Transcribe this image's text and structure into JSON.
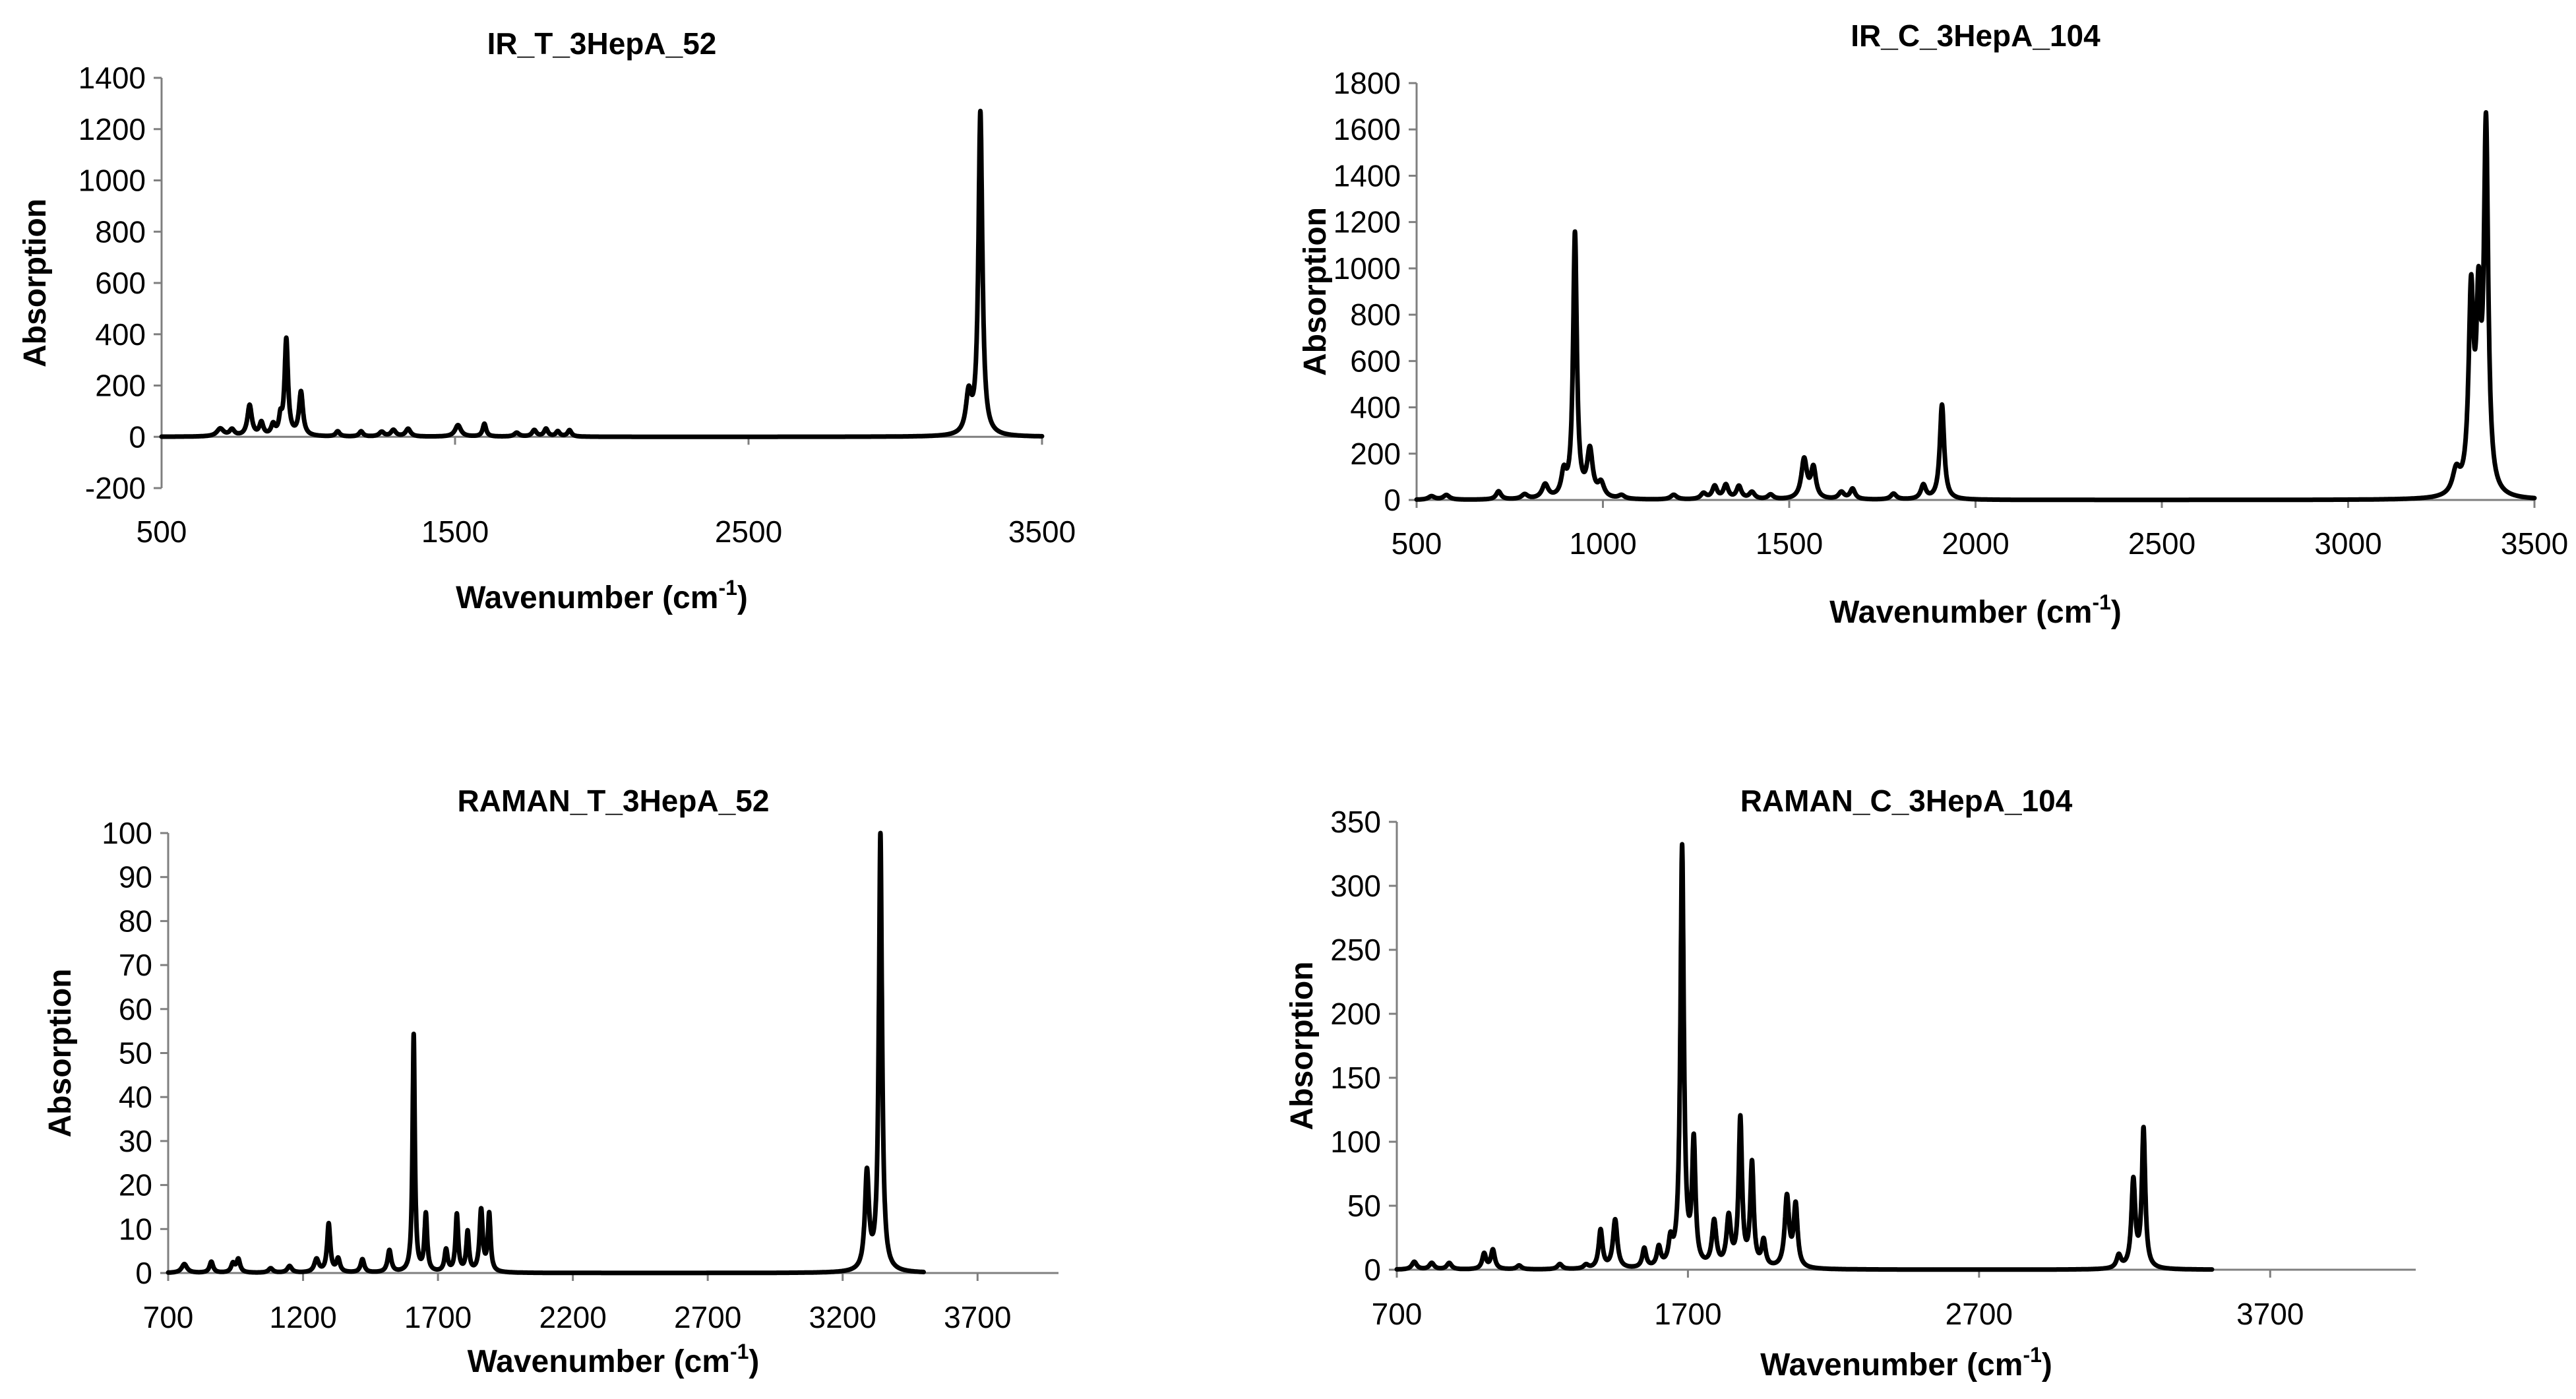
{
  "chart_data": [
    {
      "type": "line",
      "title": "IR_T_3HepA_52",
      "xlabel": "Wavenumber (cm",
      "xlabel_sup": "-1",
      "xlabel_end": ")",
      "ylabel": "Absorption",
      "xlim": [
        500,
        3500
      ],
      "ylim": [
        -200,
        1400
      ],
      "xticks": [
        500,
        1500,
        2500,
        3500
      ],
      "yticks": [
        -200,
        0,
        200,
        400,
        600,
        800,
        1000,
        1200,
        1400
      ],
      "grid": false,
      "legend": "none",
      "series": [
        {
          "name": "IR_T_3HepA_52",
          "x_range": [
            500,
            3500
          ],
          "baseline": 0,
          "peaks": [
            {
              "x": 700,
              "y": 30,
              "w": 14
            },
            {
              "x": 740,
              "y": 25,
              "w": 10
            },
            {
              "x": 800,
              "y": 120,
              "w": 9
            },
            {
              "x": 840,
              "y": 50,
              "w": 8
            },
            {
              "x": 880,
              "y": 40,
              "w": 8
            },
            {
              "x": 905,
              "y": 60,
              "w": 6
            },
            {
              "x": 925,
              "y": 375,
              "w": 7
            },
            {
              "x": 975,
              "y": 170,
              "w": 8
            },
            {
              "x": 1100,
              "y": 20,
              "w": 8
            },
            {
              "x": 1180,
              "y": 20,
              "w": 8
            },
            {
              "x": 1250,
              "y": 18,
              "w": 10
            },
            {
              "x": 1290,
              "y": 25,
              "w": 10
            },
            {
              "x": 1340,
              "y": 30,
              "w": 10
            },
            {
              "x": 1510,
              "y": 45,
              "w": 12
            },
            {
              "x": 1600,
              "y": 50,
              "w": 7
            },
            {
              "x": 1710,
              "y": 15,
              "w": 10
            },
            {
              "x": 1770,
              "y": 25,
              "w": 9
            },
            {
              "x": 1810,
              "y": 30,
              "w": 8
            },
            {
              "x": 1850,
              "y": 20,
              "w": 8
            },
            {
              "x": 1890,
              "y": 25,
              "w": 8
            },
            {
              "x": 3250,
              "y": 150,
              "w": 11
            },
            {
              "x": 3290,
              "y": 1260,
              "w": 8
            }
          ]
        }
      ]
    },
    {
      "type": "line",
      "title": "IR_C_3HepA_104",
      "xlabel": "Wavenumber (cm",
      "xlabel_sup": "-1",
      "xlabel_end": ")",
      "ylabel": "Absorption",
      "xlim": [
        500,
        3500
      ],
      "ylim": [
        0,
        1800
      ],
      "xticks": [
        500,
        1000,
        1500,
        2000,
        2500,
        3000,
        3500
      ],
      "yticks": [
        0,
        200,
        400,
        600,
        800,
        1000,
        1200,
        1400,
        1600,
        1800
      ],
      "grid": false,
      "legend": "none",
      "series": [
        {
          "name": "IR_C_3HepA_104",
          "x_range": [
            500,
            3500
          ],
          "baseline": 0,
          "peaks": [
            {
              "x": 540,
              "y": 15,
              "w": 10
            },
            {
              "x": 580,
              "y": 20,
              "w": 10
            },
            {
              "x": 720,
              "y": 35,
              "w": 8
            },
            {
              "x": 790,
              "y": 20,
              "w": 10
            },
            {
              "x": 845,
              "y": 60,
              "w": 10
            },
            {
              "x": 895,
              "y": 100,
              "w": 8
            },
            {
              "x": 925,
              "y": 1140,
              "w": 6
            },
            {
              "x": 965,
              "y": 200,
              "w": 9
            },
            {
              "x": 995,
              "y": 60,
              "w": 10
            },
            {
              "x": 1050,
              "y": 15,
              "w": 10
            },
            {
              "x": 1190,
              "y": 20,
              "w": 10
            },
            {
              "x": 1270,
              "y": 25,
              "w": 9
            },
            {
              "x": 1300,
              "y": 55,
              "w": 8
            },
            {
              "x": 1330,
              "y": 60,
              "w": 8
            },
            {
              "x": 1365,
              "y": 55,
              "w": 8
            },
            {
              "x": 1400,
              "y": 30,
              "w": 9
            },
            {
              "x": 1450,
              "y": 20,
              "w": 9
            },
            {
              "x": 1540,
              "y": 170,
              "w": 9
            },
            {
              "x": 1565,
              "y": 130,
              "w": 8
            },
            {
              "x": 1640,
              "y": 30,
              "w": 9
            },
            {
              "x": 1670,
              "y": 45,
              "w": 8
            },
            {
              "x": 1780,
              "y": 25,
              "w": 9
            },
            {
              "x": 1860,
              "y": 60,
              "w": 8
            },
            {
              "x": 1910,
              "y": 410,
              "w": 7
            },
            {
              "x": 3290,
              "y": 100,
              "w": 12
            },
            {
              "x": 3330,
              "y": 840,
              "w": 8
            },
            {
              "x": 3350,
              "y": 720,
              "w": 7
            },
            {
              "x": 3370,
              "y": 1560,
              "w": 7
            }
          ]
        }
      ]
    },
    {
      "type": "line",
      "title": "RAMAN_T_3HepA_52",
      "xlabel": "Wavenumber (cm",
      "xlabel_sup": "-1",
      "xlabel_end": ")",
      "ylabel": "Absorption",
      "xlim": [
        700,
        4000
      ],
      "ylim": [
        0,
        100
      ],
      "xticks": [
        700,
        1200,
        1700,
        2200,
        2700,
        3200,
        3700
      ],
      "yticks": [
        0,
        10,
        20,
        30,
        40,
        50,
        60,
        70,
        80,
        90,
        100
      ],
      "grid": false,
      "legend": "none",
      "series": [
        {
          "name": "RAMAN_T_3HepA_52",
          "x_range": [
            700,
            3500
          ],
          "baseline": 0,
          "peaks": [
            {
              "x": 760,
              "y": 2,
              "w": 12
            },
            {
              "x": 860,
              "y": 2.5,
              "w": 8
            },
            {
              "x": 940,
              "y": 2,
              "w": 8
            },
            {
              "x": 960,
              "y": 3,
              "w": 8
            },
            {
              "x": 1080,
              "y": 1,
              "w": 10
            },
            {
              "x": 1150,
              "y": 1.5,
              "w": 10
            },
            {
              "x": 1250,
              "y": 3,
              "w": 10
            },
            {
              "x": 1295,
              "y": 11,
              "w": 7
            },
            {
              "x": 1330,
              "y": 3,
              "w": 8
            },
            {
              "x": 1420,
              "y": 3,
              "w": 8
            },
            {
              "x": 1520,
              "y": 5,
              "w": 8
            },
            {
              "x": 1610,
              "y": 54,
              "w": 5
            },
            {
              "x": 1655,
              "y": 13,
              "w": 6
            },
            {
              "x": 1730,
              "y": 5,
              "w": 7
            },
            {
              "x": 1770,
              "y": 13,
              "w": 6
            },
            {
              "x": 1810,
              "y": 9,
              "w": 6
            },
            {
              "x": 1860,
              "y": 14,
              "w": 7
            },
            {
              "x": 1890,
              "y": 13,
              "w": 6
            },
            {
              "x": 3290,
              "y": 22,
              "w": 9
            },
            {
              "x": 3340,
              "y": 99.5,
              "w": 7
            }
          ]
        }
      ]
    },
    {
      "type": "line",
      "title": "RAMAN_C_3HepA_104",
      "xlabel": "Wavenumber (cm",
      "xlabel_sup": "-1",
      "xlabel_end": ")",
      "ylabel": "Absorption",
      "xlim": [
        700,
        4200
      ],
      "ylim": [
        0,
        350
      ],
      "xticks": [
        700,
        1700,
        2700,
        3700
      ],
      "yticks": [
        0,
        50,
        100,
        150,
        200,
        250,
        300,
        350
      ],
      "grid": false,
      "legend": "none",
      "series": [
        {
          "name": "RAMAN_C_3HepA_104",
          "x_range": [
            700,
            3500
          ],
          "baseline": 0,
          "peaks": [
            {
              "x": 760,
              "y": 6,
              "w": 10
            },
            {
              "x": 820,
              "y": 5,
              "w": 10
            },
            {
              "x": 880,
              "y": 5,
              "w": 10
            },
            {
              "x": 1000,
              "y": 12,
              "w": 8
            },
            {
              "x": 1030,
              "y": 15,
              "w": 8
            },
            {
              "x": 1120,
              "y": 3,
              "w": 10
            },
            {
              "x": 1260,
              "y": 4,
              "w": 10
            },
            {
              "x": 1350,
              "y": 3,
              "w": 10
            },
            {
              "x": 1400,
              "y": 30,
              "w": 8
            },
            {
              "x": 1450,
              "y": 38,
              "w": 9
            },
            {
              "x": 1550,
              "y": 15,
              "w": 8
            },
            {
              "x": 1600,
              "y": 15,
              "w": 8
            },
            {
              "x": 1640,
              "y": 18,
              "w": 8
            },
            {
              "x": 1680,
              "y": 328,
              "w": 7
            },
            {
              "x": 1720,
              "y": 95,
              "w": 7
            },
            {
              "x": 1790,
              "y": 35,
              "w": 9
            },
            {
              "x": 1840,
              "y": 38,
              "w": 9
            },
            {
              "x": 1880,
              "y": 115,
              "w": 7
            },
            {
              "x": 1920,
              "y": 80,
              "w": 7
            },
            {
              "x": 1960,
              "y": 20,
              "w": 8
            },
            {
              "x": 2040,
              "y": 55,
              "w": 9
            },
            {
              "x": 2070,
              "y": 48,
              "w": 8
            },
            {
              "x": 3180,
              "y": 10,
              "w": 9
            },
            {
              "x": 3230,
              "y": 68,
              "w": 8
            },
            {
              "x": 3265,
              "y": 108,
              "w": 7
            }
          ]
        }
      ]
    }
  ]
}
